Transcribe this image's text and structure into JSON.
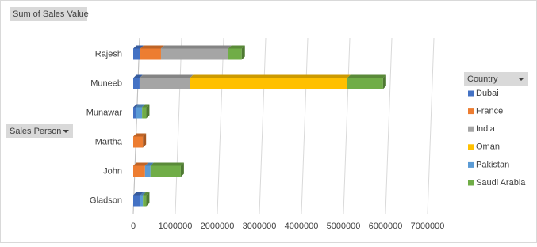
{
  "chart_data": {
    "type": "bar",
    "orientation": "horizontal",
    "stacked": true,
    "title": "Sum of Sales Value",
    "category_field": "Sales Person",
    "legend_title": "Country",
    "legend_position": "right",
    "categories": [
      "Rajesh",
      "Muneeb",
      "Munawar",
      "Martha",
      "John",
      "Gladson"
    ],
    "series": [
      {
        "name": "Dubai",
        "color": "#4472c4",
        "values": [
          170000,
          150000,
          60000,
          null,
          null,
          170000
        ]
      },
      {
        "name": "France",
        "color": "#ed7d31",
        "values": [
          490000,
          null,
          null,
          230000,
          280000,
          null
        ]
      },
      {
        "name": "India",
        "color": "#a5a5a5",
        "values": [
          1600000,
          1200000,
          null,
          null,
          null,
          null
        ]
      },
      {
        "name": "Oman",
        "color": "#ffc000",
        "values": [
          null,
          3740000,
          null,
          null,
          null,
          null
        ]
      },
      {
        "name": "Pakistan",
        "color": "#5b9bd5",
        "values": [
          null,
          null,
          150000,
          null,
          130000,
          60000
        ]
      },
      {
        "name": "Saudi Arabia",
        "color": "#70ad47",
        "values": [
          320000,
          850000,
          100000,
          null,
          720000,
          80000
        ]
      }
    ],
    "xlim": [
      0,
      7000000
    ],
    "xticks": [
      0,
      1000000,
      2000000,
      3000000,
      4000000,
      5000000,
      6000000,
      7000000
    ],
    "grid": true
  }
}
